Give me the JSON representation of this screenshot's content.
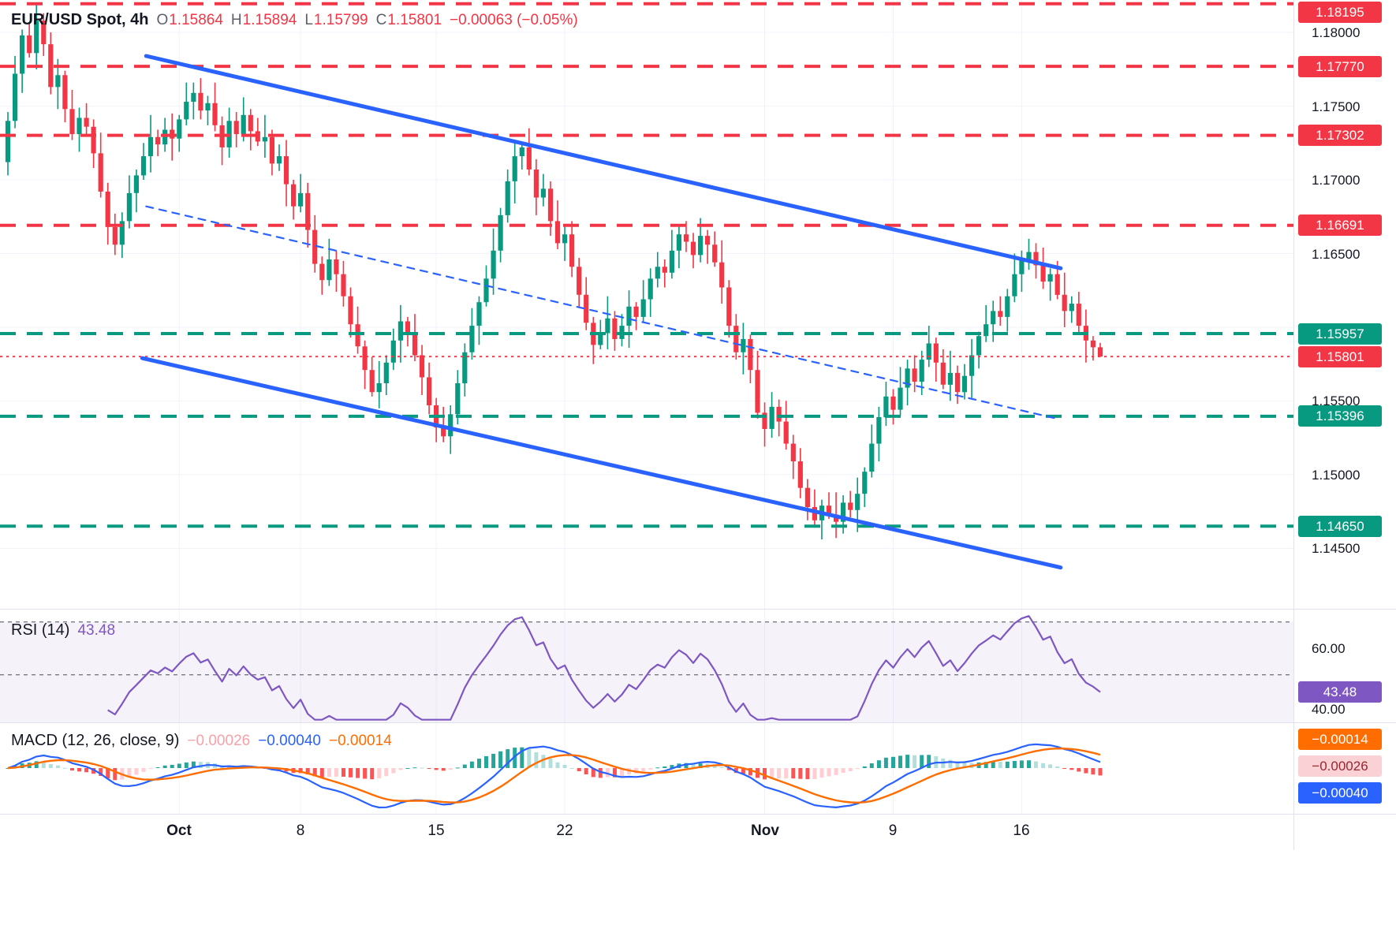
{
  "legend": {
    "symbol": "EUR/USD Spot, 4h",
    "open_label": "O",
    "open": "1.15864",
    "high_label": "H",
    "high": "1.15894",
    "low_label": "L",
    "low": "1.15799",
    "close_label": "C",
    "close": "1.15801",
    "change": "−0.00063 (−0.05%)"
  },
  "rsi_legend": {
    "title": "RSI (14)",
    "value": "43.48"
  },
  "macd_legend": {
    "title": "MACD (12, 26, close, 9)",
    "hist": "−0.00026",
    "macd": "−0.00040",
    "signal": "−0.00014"
  },
  "colors": {
    "up": "#089981",
    "down": "#f23645",
    "trend": "#2962ff",
    "rsi": "#7e57c2",
    "macd_line": "#2962ff",
    "signal_line": "#ff6d00",
    "hist_up": "#26a69a",
    "hist_up_weak": "#b2dfdb",
    "hist_down": "#ff5252",
    "hist_down_weak": "#ffcdd2",
    "grid": "#f0f3fa",
    "separator": "#e0e3eb",
    "level_red": "#f23645",
    "level_green": "#089981"
  },
  "axis": {
    "price_ticks": [
      {
        "label": "1.18000",
        "price": 1.18
      },
      {
        "label": "1.17500",
        "price": 1.175
      },
      {
        "label": "1.17000",
        "price": 1.17
      },
      {
        "label": "1.16500",
        "price": 1.165
      },
      {
        "label": "1.15500",
        "price": 1.155
      },
      {
        "label": "1.15000",
        "price": 1.15
      },
      {
        "label": "1.14500",
        "price": 1.145
      }
    ],
    "price_badges": [
      {
        "label": "1.18195",
        "price": 1.18195,
        "bg": "#f23645"
      },
      {
        "label": "1.17770",
        "price": 1.1777,
        "bg": "#f23645"
      },
      {
        "label": "1.17302",
        "price": 1.17302,
        "bg": "#f23645"
      },
      {
        "label": "1.16691",
        "price": 1.16691,
        "bg": "#f23645"
      },
      {
        "label": "1.15957",
        "price": 1.15957,
        "bg": "#089981"
      },
      {
        "label": "1.15801",
        "price": 1.15801,
        "bg": "#f23645",
        "name": "current-price-badge"
      },
      {
        "label": "1.15396",
        "price": 1.15396,
        "bg": "#089981"
      },
      {
        "label": "1.14650",
        "price": 1.1465,
        "bg": "#089981"
      }
    ],
    "rsi_ticks": [
      {
        "label": "60.00",
        "value": 60,
        "dy": 0
      },
      {
        "label": "40.00",
        "value": 40,
        "dy": 10
      }
    ],
    "rsi_badge": {
      "label": "43.48",
      "value": 43.48
    },
    "macd_badges": [
      {
        "label": "−0.00014",
        "bg": "#ff6d00",
        "fg": "#ffffff"
      },
      {
        "label": "−0.00026",
        "bg": "#fad2d6",
        "fg": "#99262f"
      },
      {
        "label": "−0.00040",
        "bg": "#2962ff",
        "fg": "#ffffff"
      }
    ]
  },
  "chart_data": [
    {
      "type": "candlestick",
      "title": "EUR/USD Spot, 4h",
      "ylim": [
        1.1409,
        1.1822
      ],
      "open_rule": "previous_close",
      "first_open": 1.1712,
      "closes": [
        1.174,
        1.1772,
        1.1798,
        1.1786,
        1.1808,
        1.1792,
        1.1763,
        1.1771,
        1.1748,
        1.1731,
        1.1742,
        1.1736,
        1.1718,
        1.1692,
        1.1668,
        1.1656,
        1.1672,
        1.1691,
        1.1703,
        1.1716,
        1.1729,
        1.1724,
        1.1734,
        1.1728,
        1.1741,
        1.1753,
        1.1759,
        1.1747,
        1.1752,
        1.1737,
        1.1722,
        1.174,
        1.1731,
        1.1744,
        1.1733,
        1.1726,
        1.1729,
        1.1711,
        1.1716,
        1.1697,
        1.1682,
        1.1691,
        1.1666,
        1.1643,
        1.1632,
        1.1646,
        1.1636,
        1.1621,
        1.1602,
        1.1587,
        1.1571,
        1.1556,
        1.1562,
        1.1576,
        1.1591,
        1.1604,
        1.1596,
        1.1581,
        1.1566,
        1.1547,
        1.1532,
        1.1526,
        1.1541,
        1.1562,
        1.1583,
        1.1601,
        1.1617,
        1.1633,
        1.1652,
        1.1676,
        1.1699,
        1.1716,
        1.1722,
        1.1707,
        1.1688,
        1.1694,
        1.1672,
        1.1657,
        1.1663,
        1.1641,
        1.1622,
        1.1603,
        1.1588,
        1.1596,
        1.1606,
        1.1592,
        1.1601,
        1.1614,
        1.1607,
        1.1619,
        1.1633,
        1.1641,
        1.1637,
        1.1652,
        1.1663,
        1.1658,
        1.1649,
        1.1662,
        1.1656,
        1.1644,
        1.1627,
        1.1601,
        1.1583,
        1.1592,
        1.1571,
        1.1542,
        1.1531,
        1.1546,
        1.1536,
        1.1521,
        1.1509,
        1.1491,
        1.1478,
        1.1469,
        1.1479,
        1.1473,
        1.1468,
        1.1481,
        1.1476,
        1.1487,
        1.1502,
        1.1521,
        1.1539,
        1.1553,
        1.1544,
        1.1559,
        1.1572,
        1.1563,
        1.1578,
        1.1589,
        1.1576,
        1.1561,
        1.1569,
        1.1556,
        1.1567,
        1.1581,
        1.1594,
        1.1602,
        1.1611,
        1.1607,
        1.1621,
        1.1636,
        1.1646,
        1.1651,
        1.1642,
        1.1631,
        1.1636,
        1.1622,
        1.1611,
        1.1616,
        1.1601,
        1.1591,
        1.15864,
        1.15801
      ],
      "wick_high": [
        6,
        12,
        4,
        9,
        15,
        5,
        8,
        11,
        3,
        13,
        7,
        10,
        5,
        14,
        6,
        9,
        6,
        12,
        4,
        9,
        15,
        5,
        8,
        11,
        3,
        13,
        7,
        10,
        5,
        14,
        6,
        9,
        6,
        12,
        4,
        9,
        15,
        5,
        8,
        11,
        3,
        13,
        7,
        10,
        5,
        14,
        6,
        9,
        6,
        12,
        4,
        9,
        15,
        5,
        8,
        11,
        3,
        13,
        7,
        10,
        5,
        14,
        6,
        9,
        6,
        12,
        4,
        9,
        15,
        5,
        8,
        11,
        3,
        13,
        7,
        10,
        5,
        14,
        6,
        9,
        6,
        12,
        4,
        9,
        15,
        5,
        8,
        11,
        3,
        13,
        7,
        10,
        5,
        14,
        6,
        9,
        6,
        12,
        4,
        9,
        15,
        5,
        8,
        11,
        3,
        13,
        7,
        10,
        5,
        14,
        6,
        9,
        6,
        12,
        4,
        9,
        15,
        5,
        8,
        11,
        3,
        13,
        7,
        10,
        5,
        14,
        6,
        9,
        6,
        12,
        4,
        9,
        15,
        5,
        8,
        11,
        3,
        13,
        7,
        10,
        5,
        14,
        6,
        9,
        6,
        12,
        4,
        9,
        15,
        5,
        8,
        11,
        3,
        13
      ],
      "wick_low": [
        9,
        5,
        13,
        3,
        11,
        8,
        5,
        15,
        9,
        4,
        12,
        6,
        10,
        4,
        12,
        7,
        9,
        5,
        13,
        3,
        11,
        8,
        5,
        15,
        9,
        4,
        12,
        6,
        10,
        4,
        12,
        7,
        9,
        5,
        13,
        3,
        11,
        8,
        5,
        15,
        9,
        4,
        12,
        6,
        10,
        4,
        12,
        7,
        9,
        5,
        13,
        3,
        11,
        8,
        5,
        15,
        9,
        4,
        12,
        6,
        10,
        4,
        12,
        7,
        9,
        5,
        13,
        3,
        11,
        8,
        5,
        15,
        9,
        4,
        12,
        6,
        10,
        4,
        12,
        7,
        9,
        5,
        13,
        3,
        11,
        8,
        5,
        15,
        9,
        4,
        12,
        6,
        10,
        4,
        12,
        7,
        9,
        5,
        13,
        3,
        11,
        8,
        5,
        15,
        9,
        4,
        12,
        6,
        10,
        4,
        12,
        7,
        9,
        5,
        13,
        3,
        11,
        8,
        5,
        15,
        9,
        4,
        12,
        6,
        10,
        4,
        12,
        7,
        9,
        5,
        13,
        3,
        11,
        8,
        5,
        15,
        9,
        4,
        12,
        6,
        10,
        4,
        12,
        7,
        9,
        5,
        13,
        3,
        11,
        8,
        5,
        15,
        9,
        4
      ],
      "high_overrides": {
        "4": 1.18195
      },
      "last_candle_override": {
        "index": 153,
        "o": 1.15864,
        "h": 1.15894,
        "l": 1.15799,
        "c": 1.15801
      },
      "levels": [
        {
          "price": 1.18195,
          "color": "#f23645"
        },
        {
          "price": 1.1777,
          "color": "#f23645"
        },
        {
          "price": 1.17302,
          "color": "#f23645"
        },
        {
          "price": 1.16691,
          "color": "#f23645"
        },
        {
          "price": 1.15957,
          "color": "#089981"
        },
        {
          "price": 1.15396,
          "color": "#089981"
        },
        {
          "price": 1.1465,
          "color": "#089981"
        }
      ],
      "current_price_line": {
        "price": 1.15801,
        "color": "#f23645"
      },
      "trendlines": [
        {
          "x1": 0.113,
          "p1": 1.1784,
          "x2": 0.82,
          "p2": 1.164,
          "style": "solid"
        },
        {
          "x1": 0.11,
          "p1": 1.1579,
          "x2": 0.82,
          "p2": 1.1437,
          "style": "solid"
        },
        {
          "x1": 0.113,
          "p1": 1.1682,
          "x2": 0.817,
          "p2": 1.1538,
          "style": "dashed"
        }
      ],
      "x_ticks": [
        {
          "label": "Oct",
          "index": 24,
          "major": true
        },
        {
          "label": "8",
          "index": 41
        },
        {
          "label": "15",
          "index": 60
        },
        {
          "label": "22",
          "index": 78
        },
        {
          "label": "Nov",
          "index": 106,
          "major": true
        },
        {
          "label": "9",
          "index": 124
        },
        {
          "label": "16",
          "index": 142
        }
      ],
      "grid_prices": [
        1.18,
        1.175,
        1.17,
        1.165,
        1.16,
        1.155,
        1.15,
        1.145
      ]
    },
    {
      "type": "line",
      "name": "RSI",
      "period": 14,
      "current": 43.48,
      "bands": {
        "upper": 70,
        "middle": 50,
        "lower": 30
      },
      "ylim": [
        32,
        75
      ],
      "axis_labels": [
        60.0,
        40.0
      ],
      "color": "#7e57c2",
      "source": "close"
    },
    {
      "type": "macd",
      "fast": 12,
      "slow": 26,
      "source": "close",
      "signal_period": 9,
      "current": {
        "histogram": -0.00026,
        "macd": -0.0004,
        "signal": -0.00014
      }
    }
  ]
}
